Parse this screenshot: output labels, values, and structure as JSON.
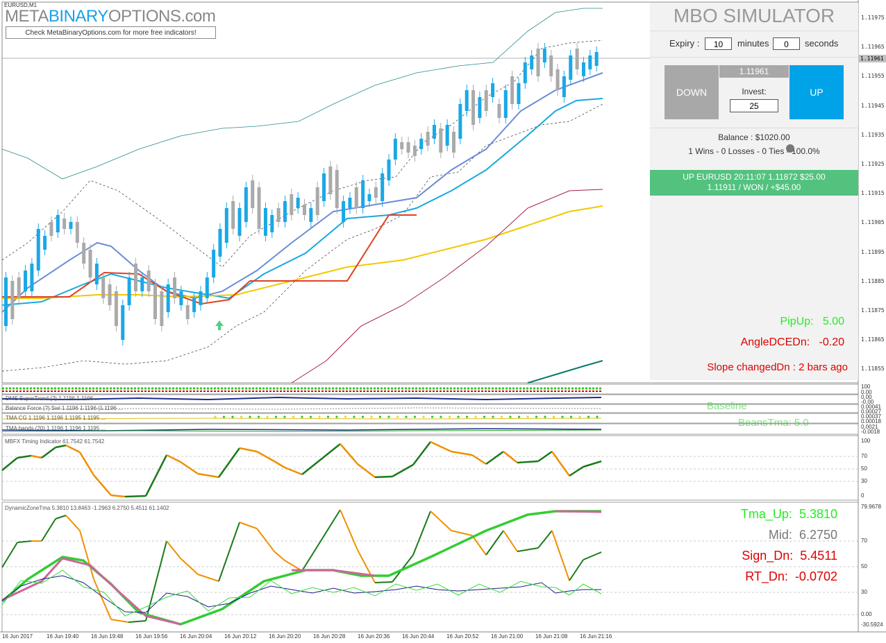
{
  "header": {
    "symbol": "EURUSD,M1",
    "logo_part1": "META",
    "logo_part2": "BINARY",
    "logo_part3": "OPTIONS",
    "logo_part4": ".com",
    "promo_link": "Check MetaBinaryOptions.com for more free indicators!"
  },
  "simulator": {
    "title": "MBO SIMULATOR",
    "expiry_label": "Expiry :",
    "expiry_minutes": "10",
    "minutes_label": "minutes",
    "expiry_seconds": "0",
    "seconds_label": "seconds",
    "down_label": "DOWN",
    "up_label": "UP",
    "current_price": "1.11961",
    "invest_label": "Invest:",
    "invest_value": "25",
    "balance_text": "Balance : $1020.00",
    "stats_text": "1 Wins - 0 Losses - 0 Ties - 100.0%",
    "trade_line1": "UP EURUSD 20:11:07 1.11872 $25.00",
    "trade_line2": "1.11911 / WON / +$45.00"
  },
  "signals": {
    "pipup_label": "PipUp:",
    "pipup_value": "5.00",
    "angle_label": "AngleDCEDn:",
    "angle_value": "-0.20",
    "slope_text": "Slope changedDn : 2  bars ago"
  },
  "colors": {
    "up_button": "#00a2e8",
    "down_button": "#a8a8a8",
    "trade_box": "#53c27f",
    "bull_candle": "#1aa8e6",
    "bear_candle": "#aaaaaa",
    "signal_green": "#22ee22",
    "signal_red": "#dd0000"
  },
  "price_axis": {
    "current_price_label": "1.11961",
    "ticks": [
      "1.11975",
      "1.11965",
      "1.11955",
      "1.11945",
      "1.11935",
      "1.11925",
      "1.11915",
      "1.11905",
      "1.11895",
      "1.11885",
      "1.11875",
      "1.11865",
      "1.11855"
    ]
  },
  "mini_panels": {
    "panel1_ticks": [
      "100",
      "0.00"
    ],
    "panel2_title": "DMS SuperTrend (?) 1.1196 1.1196 ...",
    "panel2_ticks": [
      "0.00",
      "-0.00"
    ],
    "panel3_title": "Balance Force (?) Swi 1.1196 1.1196 (1.1196 ...",
    "panel3_ticks": [
      "0.00041",
      "0.00027"
    ],
    "panel4_title": "TMA CG 1.1196 1.1196 1.1195 1.1195 ...",
    "panel4_ticks": [
      "0.00037",
      "0.00018"
    ],
    "panel5_title": "TMA bands (20) 1.1196 1.1196 1.1195 ...",
    "panel5_ticks": [
      "0.0021",
      "-0.0018"
    ],
    "overlay_text1": "Baseline",
    "overlay_text2": "BeansTma: 5.0"
  },
  "timing_indicator": {
    "title": "MBFX Timing Indicator 61.7542 61.7542",
    "ticks": [
      "100",
      "70",
      "50",
      "30",
      "0"
    ]
  },
  "dynamic_zone": {
    "title": "DynamicZoneTma 5.3810 13.8463 -1.2963 6.2750 5.4511 61.1402",
    "ticks": [
      "79.9678",
      "70",
      "50",
      "30",
      "0.00",
      "-30.5924"
    ],
    "tma_up_label": "Tma_Up:",
    "tma_up_value": "5.3810",
    "mid_label": "Mid:",
    "mid_value": "6.2750",
    "sign_dn_label": "Sign_Dn:",
    "sign_dn_value": "5.4511",
    "rt_dn_label": "RT_Dn:",
    "rt_dn_value": "-0.0702"
  },
  "time_axis": {
    "ticks": [
      "16 Jun 2017",
      "16 Jun 19:40",
      "16 Jun 19:48",
      "16 Jun 19:56",
      "16 Jun 20:04",
      "16 Jun 20:12",
      "16 Jun 20:20",
      "16 Jun 20:28",
      "16 Jun 20:36",
      "16 Jun 20:44",
      "16 Jun 20:52",
      "16 Jun 21:00",
      "16 Jun 21:08",
      "16 Jun 21:16"
    ]
  }
}
